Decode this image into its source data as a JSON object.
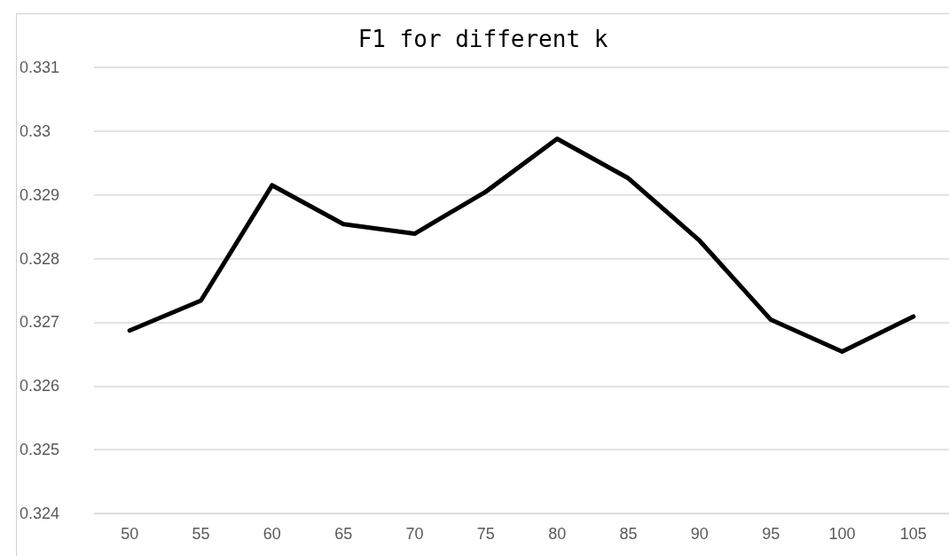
{
  "chart_data": {
    "type": "line",
    "title": "F1 for different k",
    "categories": [
      "50",
      "55",
      "60",
      "65",
      "70",
      "75",
      "80",
      "85",
      "90",
      "95",
      "100",
      "105"
    ],
    "series": [
      {
        "color": "#000000",
        "values": [
          0.32687,
          0.32734,
          0.32915,
          0.32854,
          0.32839,
          0.32905,
          0.32988,
          0.32926,
          0.32828,
          0.32704,
          0.32654,
          0.32709
        ]
      }
    ],
    "ylim": [
      0.324,
      0.331
    ],
    "yticks": [
      0.324,
      0.325,
      0.326,
      0.327,
      0.328,
      0.329,
      0.33,
      0.331
    ],
    "grid": "y",
    "marker": "none",
    "line_style": "solid"
  }
}
